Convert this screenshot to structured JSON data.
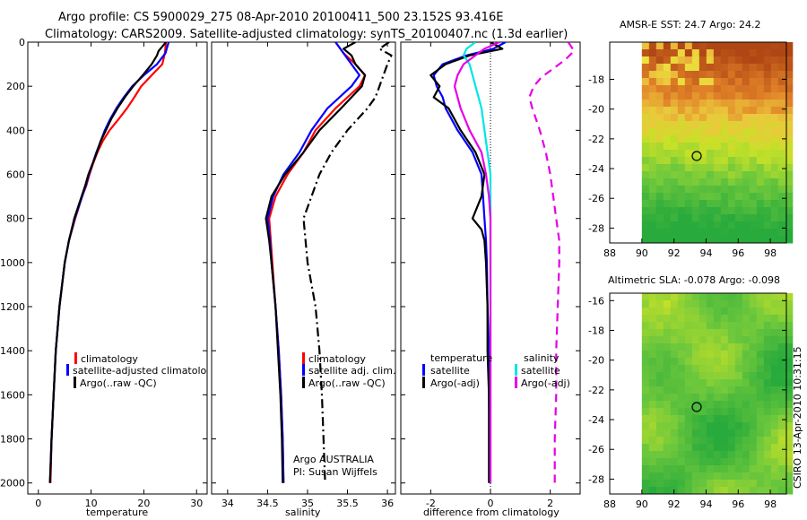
{
  "titles": {
    "line1": "Argo profile: CS 5900029_275 08-Apr-2010 20100411_500 23.152S 93.416E",
    "line2": "Climatology: CARS2009. Satellite-adjusted climatology: synTS_20100407.nc (1.3d earlier)"
  },
  "credits": {
    "argo_country": "Argo AUSTRALIA",
    "pi": "PI: Susan Wijffels",
    "stamp": "CSIRO 13-Apr-2010 10:31:15"
  },
  "colors": {
    "climatology": "#ff0000",
    "satellite": "#0000ff",
    "argo": "#000000",
    "sal_satellite": "#00e5e5",
    "sal_argo": "#e600e6"
  },
  "chart_data": [
    {
      "type": "line",
      "id": "temperature",
      "xlabel": "temperature",
      "xlim": [
        -2,
        32
      ],
      "ylim": [
        0,
        2050
      ],
      "y_reversed": true,
      "xticks": [
        0,
        10,
        20,
        30
      ],
      "yticks": [
        0,
        200,
        400,
        600,
        800,
        1000,
        1200,
        1400,
        1600,
        1800,
        2000
      ],
      "legend": [
        "climatology",
        "satellite-adjusted climatolo",
        "Argo(..raw -QC)"
      ],
      "series": [
        {
          "name": "climatology",
          "color": "#ff0000",
          "style": "solid",
          "depth": [
            0,
            50,
            100,
            150,
            200,
            250,
            300,
            350,
            400,
            450,
            500,
            550,
            600,
            650,
            700,
            800,
            900,
            1000,
            1200,
            1400,
            1600,
            1800,
            2000
          ],
          "x": [
            24.2,
            24.0,
            23.5,
            21.5,
            19.5,
            18.2,
            16.8,
            15.2,
            13.5,
            12.2,
            11.2,
            10.4,
            9.7,
            9.1,
            8.3,
            7.0,
            5.8,
            5.0,
            4.0,
            3.3,
            2.9,
            2.5,
            2.3
          ]
        },
        {
          "name": "satellite-adjusted climatology",
          "color": "#0000ff",
          "style": "solid",
          "depth": [
            0,
            50,
            100,
            150,
            200,
            250,
            300,
            350,
            400,
            450,
            500,
            550,
            600,
            650,
            700,
            800,
            900,
            1000,
            1200,
            1400,
            1600,
            1800,
            2000
          ],
          "x": [
            24.7,
            24.1,
            22.5,
            20.0,
            17.8,
            16.2,
            14.8,
            13.6,
            12.6,
            11.8,
            11.0,
            10.3,
            9.6,
            9.0,
            8.3,
            6.9,
            5.8,
            5.0,
            4.0,
            3.3,
            2.9,
            2.5,
            2.2
          ]
        },
        {
          "name": "Argo",
          "color": "#000000",
          "style": "solid",
          "depth": [
            0,
            20,
            40,
            60,
            100,
            150,
            200,
            250,
            300,
            350,
            400,
            450,
            500,
            550,
            600,
            650,
            700,
            800,
            900,
            1000,
            1200,
            1400,
            1600,
            1800,
            2000
          ],
          "x": [
            24.2,
            23.5,
            22.8,
            22.5,
            21.5,
            19.8,
            18.0,
            16.4,
            15.0,
            13.8,
            12.8,
            11.8,
            11.1,
            10.3,
            9.5,
            8.9,
            8.2,
            6.8,
            5.8,
            5.0,
            4.0,
            3.3,
            2.9,
            2.5,
            2.2
          ]
        }
      ]
    },
    {
      "type": "line",
      "id": "salinity",
      "xlabel": "salinity",
      "xlim": [
        33.8,
        36.1
      ],
      "ylim": [
        0,
        2050
      ],
      "y_reversed": true,
      "xticks": [
        34,
        34.5,
        35,
        35.5,
        36
      ],
      "legend": [
        "climatology",
        "satellite adj. clim.",
        "Argo(..raw -QC)"
      ],
      "series": [
        {
          "name": "climatology",
          "color": "#ff0000",
          "style": "solid",
          "depth": [
            0,
            50,
            100,
            150,
            200,
            250,
            300,
            400,
            500,
            600,
            700,
            800,
            900,
            1000,
            1200,
            1400,
            1600,
            1800,
            2000
          ],
          "x": [
            35.35,
            35.45,
            35.6,
            35.72,
            35.65,
            35.5,
            35.35,
            35.1,
            34.95,
            34.75,
            34.6,
            34.52,
            34.54,
            34.56,
            34.6,
            34.64,
            34.67,
            34.69,
            34.7
          ]
        },
        {
          "name": "satellite adj. clim.",
          "color": "#0000ff",
          "style": "solid",
          "depth": [
            0,
            50,
            100,
            150,
            200,
            250,
            300,
            400,
            500,
            600,
            700,
            800,
            900,
            1000,
            1200,
            1400,
            1600,
            1800,
            2000
          ],
          "x": [
            35.35,
            35.45,
            35.55,
            35.65,
            35.55,
            35.4,
            35.25,
            35.05,
            34.9,
            34.7,
            34.57,
            34.5,
            34.53,
            34.55,
            34.6,
            34.64,
            34.67,
            34.69,
            34.7
          ]
        },
        {
          "name": "Argo",
          "color": "#000000",
          "style": "solid",
          "depth": [
            0,
            30,
            60,
            100,
            150,
            200,
            250,
            300,
            400,
            500,
            600,
            700,
            800,
            900,
            1000,
            1200,
            1400,
            1600,
            1800,
            2000
          ],
          "x": [
            35.6,
            35.45,
            35.55,
            35.6,
            35.72,
            35.68,
            35.55,
            35.42,
            35.15,
            34.95,
            34.72,
            34.55,
            34.48,
            34.52,
            34.55,
            34.6,
            34.63,
            34.66,
            34.68,
            34.69
          ]
        },
        {
          "name": "Argo raw",
          "color": "#000000",
          "style": "dashdot",
          "depth": [
            0,
            30,
            60,
            100,
            150,
            200,
            250,
            300,
            400,
            500,
            600,
            700,
            800,
            1000,
            1200,
            1400,
            1600,
            1800,
            2000
          ],
          "x": [
            36.02,
            35.9,
            36.05,
            36.0,
            35.95,
            35.9,
            35.85,
            35.75,
            35.5,
            35.3,
            35.15,
            35.05,
            34.95,
            35.0,
            35.1,
            35.15,
            35.18,
            35.2,
            35.22
          ]
        }
      ]
    },
    {
      "type": "line",
      "id": "difference",
      "xlabel": "difference from climatology",
      "xlim": [
        -3,
        3
      ],
      "ylim": [
        0,
        2050
      ],
      "y_reversed": true,
      "xticks": [
        -2,
        0,
        2
      ],
      "legend_titles": [
        "temperature",
        "salinity"
      ],
      "legend": [
        "satellite",
        "Argo(-adj)",
        "satellite",
        "Argo(-adj)"
      ],
      "series": [
        {
          "name": "temperature satellite",
          "color": "#0000ff",
          "style": "solid",
          "depth": [
            0,
            30,
            60,
            100,
            150,
            200,
            250,
            300,
            400,
            500,
            600,
            700,
            800,
            900,
            1000,
            1200,
            1400,
            1600,
            1800,
            2000
          ],
          "x": [
            0.5,
            0.1,
            -0.8,
            -1.6,
            -1.9,
            -1.8,
            -1.6,
            -1.5,
            -1.1,
            -0.6,
            -0.3,
            -0.25,
            -0.2,
            -0.15,
            -0.12,
            -0.1,
            -0.05,
            -0.05,
            -0.03,
            -0.03
          ]
        },
        {
          "name": "temperature Argo",
          "color": "#000000",
          "style": "solid",
          "depth": [
            0,
            30,
            60,
            100,
            150,
            200,
            250,
            300,
            400,
            500,
            600,
            700,
            800,
            850,
            900,
            1000,
            1200,
            1400,
            1600,
            1800,
            2000
          ],
          "x": [
            0.0,
            0.4,
            -0.7,
            -1.5,
            -2.0,
            -1.7,
            -1.9,
            -1.4,
            -1.0,
            -0.5,
            -0.2,
            -0.3,
            -0.6,
            -0.3,
            -0.2,
            -0.15,
            -0.1,
            -0.1,
            -0.05,
            -0.05,
            -0.05
          ]
        },
        {
          "name": "salinity satellite",
          "color": "#00e5e5",
          "style": "solid",
          "depth": [
            0,
            30,
            60,
            100,
            150,
            200,
            250,
            300,
            400,
            500,
            600,
            800,
            1000,
            1200,
            1400,
            1600,
            1800,
            2000
          ],
          "x": [
            -0.5,
            -0.8,
            -0.9,
            -0.7,
            -0.6,
            -0.5,
            -0.4,
            -0.3,
            -0.2,
            -0.1,
            0.0,
            0.0,
            0.0,
            0.0,
            0.0,
            0.0,
            0.0,
            0.0
          ]
        },
        {
          "name": "salinity Argo",
          "color": "#e600e6",
          "style": "solid",
          "depth": [
            0,
            30,
            60,
            100,
            150,
            200,
            250,
            300,
            400,
            500,
            600,
            700,
            800,
            900,
            1000,
            1200,
            1400,
            1600,
            1800,
            2000
          ],
          "x": [
            0.3,
            -0.2,
            -0.5,
            -0.9,
            -1.1,
            -1.2,
            -1.1,
            -1.0,
            -0.7,
            -0.3,
            -0.15,
            -0.05,
            0.0,
            0.0,
            0.0,
            0.0,
            0.0,
            0.0,
            0.0,
            0.0
          ]
        },
        {
          "name": "salinity Argo raw",
          "color": "#e600e6",
          "style": "dashed",
          "depth": [
            0,
            40,
            80,
            120,
            160,
            200,
            250,
            300,
            400,
            500,
            600,
            700,
            800,
            900,
            1000,
            1200,
            1400,
            1600,
            1800,
            2000
          ],
          "x": [
            2.6,
            2.8,
            2.5,
            2.1,
            1.7,
            1.45,
            1.3,
            1.4,
            1.65,
            1.85,
            2.0,
            2.1,
            2.2,
            2.3,
            2.3,
            2.25,
            2.2,
            2.2,
            2.15,
            2.15
          ]
        }
      ]
    },
    {
      "type": "heatmap",
      "id": "sst_map",
      "title": "AMSR-E SST: 24.7 Argo: 24.2",
      "xlim": [
        88,
        99
      ],
      "ylim": [
        -29,
        -15.5
      ],
      "xticks": [
        88,
        90,
        92,
        94,
        96,
        98
      ],
      "yticks": [
        -18,
        -20,
        -22,
        -24,
        -26,
        -28
      ],
      "marker": {
        "lon": 93.416,
        "lat": -23.152
      }
    },
    {
      "type": "heatmap",
      "id": "sla_map",
      "title": "Altimetric SLA: -0.078 Argo: -0.098",
      "xlim": [
        88,
        99
      ],
      "ylim": [
        -29,
        -15.5
      ],
      "xticks": [
        88,
        90,
        92,
        94,
        96,
        98
      ],
      "yticks": [
        -16,
        -18,
        -20,
        -22,
        -24,
        -26,
        -28
      ],
      "marker": {
        "lon": 93.416,
        "lat": -23.152
      }
    }
  ]
}
